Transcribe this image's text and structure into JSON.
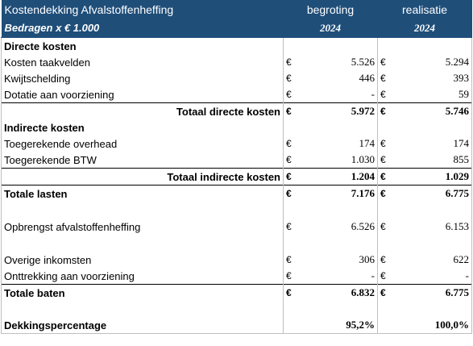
{
  "table": {
    "header": [
      [
        "Kostendekking Afvalstoffenheffing",
        "begroting",
        "realisatie"
      ],
      [
        "Bedragen x € 1.000",
        "2024",
        "2024"
      ]
    ],
    "rows": [
      [
        "Directe kosten"
      ],
      [
        "Kosten taakvelden",
        "€",
        "5.526",
        "€",
        "5.294"
      ],
      [
        "Kwijtschelding",
        "€",
        "446",
        "€",
        "393"
      ],
      [
        "Dotatie aan voorziening",
        "€",
        "-",
        "€",
        "59"
      ],
      [
        "Totaal directe kosten",
        "€",
        "5.972",
        "€",
        "5.746"
      ],
      [
        "Indirecte kosten"
      ],
      [
        "Toegerekende overhead",
        "€",
        "174",
        "€",
        "174"
      ],
      [
        "Toegerekende BTW",
        "€",
        "1.030",
        "€",
        "855"
      ],
      [
        "Totaal indirecte kosten",
        "€",
        "1.204",
        "€",
        "1.029"
      ],
      [
        "Totale lasten",
        "€",
        "7.176",
        "€",
        "6.775"
      ],
      [],
      [
        "Opbrengst afvalstoffenheffing",
        "€",
        "6.526",
        "€",
        "6.153"
      ],
      [],
      [
        "Overige inkomsten",
        "€",
        "306",
        "€",
        "622"
      ],
      [
        "Onttrekking aan voorziening",
        "€",
        "-",
        "€",
        "-"
      ],
      [
        "Totale baten",
        "€",
        "6.832",
        "€",
        "6.775"
      ],
      [],
      [
        "Dekkingspercentage",
        "95,2%",
        "100,0%"
      ]
    ]
  }
}
